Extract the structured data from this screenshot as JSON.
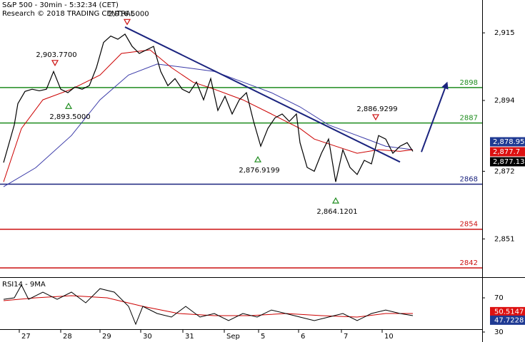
{
  "chart_data": [
    {
      "type": "line",
      "title": "S&P 500 - 30min - 5:32:34 (CET)",
      "subtitle": "Research © 2018 TRADING CENTRAL",
      "xlim": [
        0,
        135
      ],
      "xticks": [
        {
          "value": 5.4,
          "label": "27"
        },
        {
          "value": 17,
          "label": "28"
        },
        {
          "value": 28,
          "label": "29"
        },
        {
          "value": 39.4,
          "label": "30"
        },
        {
          "value": 51.2,
          "label": "31"
        },
        {
          "value": 62.8,
          "label": "Sep"
        },
        {
          "value": 72.4,
          "label": "5"
        },
        {
          "value": 83.6,
          "label": "6"
        },
        {
          "value": 95.6,
          "label": "7"
        },
        {
          "value": 107,
          "label": "10"
        }
      ],
      "ylim": [
        2840,
        2925.2
      ],
      "yticks": [
        {
          "value": 2915,
          "label": "2,915"
        },
        {
          "value": 2894,
          "label": "2,894"
        },
        {
          "value": 2872,
          "label": "2,872"
        },
        {
          "value": 2851,
          "label": "2,851"
        }
      ],
      "series": [
        {
          "color": "#000000",
          "x": [
            1,
            4,
            5,
            7,
            9,
            11,
            13,
            15,
            17,
            19,
            21,
            23,
            25,
            27,
            29,
            31,
            33,
            35,
            37,
            39,
            41,
            43,
            45,
            47,
            49,
            51,
            53,
            55,
            57,
            59,
            61,
            63,
            65,
            67,
            69,
            71,
            73,
            75,
            77,
            79,
            81,
            83,
            84,
            86,
            88,
            90,
            92,
            94,
            96,
            98,
            100,
            102,
            104,
            106,
            108,
            110,
            112,
            114,
            115.6
          ],
          "values": [
            2874.7,
            2886.4,
            2893,
            2896.8,
            2897.5,
            2897,
            2897.5,
            2903,
            2897.5,
            2896.4,
            2898.2,
            2897.5,
            2898.6,
            2904.2,
            2912,
            2914,
            2913,
            2914.6,
            2910.8,
            2908.6,
            2909.7,
            2910.8,
            2903,
            2898.6,
            2900.8,
            2897.5,
            2896.4,
            2899.7,
            2894.2,
            2900.8,
            2890.9,
            2895.3,
            2889.8,
            2894.2,
            2896.4,
            2887.5,
            2879.8,
            2885.3,
            2888.6,
            2889.8,
            2887.5,
            2889.8,
            2880.9,
            2873.2,
            2872,
            2877.6,
            2882,
            2868.7,
            2878.7,
            2873.2,
            2871,
            2875.4,
            2874.3,
            2883.1,
            2882,
            2877.6,
            2879.8,
            2880.9,
            2878.2
          ]
        },
        {
          "color": "#cc0000",
          "x": [
            1,
            6,
            12,
            20,
            28,
            34,
            42,
            48,
            54,
            60,
            68,
            76,
            84,
            88,
            94,
            100,
            106,
            112,
            115.6
          ],
          "values": [
            2868.7,
            2885.3,
            2894.2,
            2897.5,
            2901.9,
            2908.6,
            2909.7,
            2904.2,
            2899.7,
            2897.5,
            2894.2,
            2889.8,
            2885.3,
            2882,
            2879.8,
            2877.6,
            2878.7,
            2878.2,
            2878.7
          ]
        },
        {
          "color": "#3a3aa8",
          "x": [
            1,
            10,
            20,
            28,
            36,
            44,
            52,
            60,
            68,
            76,
            84,
            92,
            100,
            108,
            115.6
          ],
          "values": [
            2867.2,
            2873.1,
            2883.1,
            2894.2,
            2901.9,
            2905.3,
            2904.2,
            2903,
            2899.7,
            2896.4,
            2892,
            2886.4,
            2883.1,
            2879.8,
            2878.7
          ]
        }
      ],
      "levels": [
        {
          "value": 2898,
          "color": "#1e8c1e"
        },
        {
          "value": 2887,
          "color": "#1e8c1e"
        },
        {
          "value": 2868,
          "color": "#1a237e"
        },
        {
          "value": 2854,
          "color": "#cc1111"
        },
        {
          "value": 2842,
          "color": "#cc1111"
        }
      ],
      "trendline": {
        "color": "#1a237e",
        "x": [
          35,
          112
        ],
        "values": [
          2916.8,
          2874.9
        ]
      },
      "arrow": {
        "color": "#1a237e",
        "x": [
          118,
          125
        ],
        "values": [
          2878,
          2899
        ]
      },
      "annotations": [
        {
          "x": 15.4,
          "value": 2903.77,
          "label": "2,903.7700",
          "marker": "down"
        },
        {
          "x": 35.6,
          "value": 2916.5,
          "label": "2,916.5000",
          "marker": "down"
        },
        {
          "x": 19.2,
          "value": 2893.5,
          "label": "2,893.5000",
          "marker": "up"
        },
        {
          "x": 72.2,
          "value": 2876.9199,
          "label": "2,876.9199",
          "marker": "up"
        },
        {
          "x": 94,
          "value": 2864.1201,
          "label": "2,864.1201",
          "marker": "up"
        },
        {
          "x": 105.2,
          "value": 2886.9299,
          "label": "2,886.9299",
          "marker": "down"
        }
      ],
      "price_tags": [
        {
          "value": 2878.95,
          "label": "2,878.95",
          "color": "#1f3a93"
        },
        {
          "value": 2877.7,
          "label": "2,877.7",
          "color": "#dd1111"
        },
        {
          "value": 2877.13,
          "label": "2,877.13",
          "color": "#000000"
        }
      ]
    },
    {
      "type": "line",
      "title": "RSI14 - 9MA",
      "xlim": [
        0,
        135
      ],
      "ylim": [
        30,
        91.7
      ],
      "yticks": [
        70,
        30
      ],
      "series": [
        {
          "color": "#000000",
          "x": [
            1,
            4,
            6,
            8,
            12,
            16,
            20,
            24,
            28,
            32,
            36,
            38,
            40,
            44,
            48,
            52,
            56,
            60,
            64,
            68,
            72,
            76,
            80,
            84,
            88,
            92,
            96,
            100,
            104,
            108,
            112,
            115.6
          ],
          "values": [
            68.3,
            70,
            85,
            68.3,
            76.7,
            68.3,
            76.7,
            64.2,
            80.8,
            76.7,
            60,
            39.2,
            60,
            51.7,
            47.5,
            60,
            47.5,
            51.7,
            43.3,
            51.7,
            47.5,
            55.8,
            51.7,
            47.5,
            43.3,
            47.5,
            51.7,
            43.3,
            51.7,
            55.8,
            51.7,
            49.2
          ]
        },
        {
          "color": "#cc0000",
          "x": [
            1,
            10,
            20,
            30,
            40,
            50,
            60,
            70,
            80,
            90,
            100,
            108,
            115.6
          ],
          "values": [
            66.7,
            70,
            72.5,
            70,
            60,
            51.7,
            49.2,
            49.2,
            51.7,
            49.2,
            47.5,
            51.7,
            51.7
          ]
        }
      ],
      "tags": [
        {
          "value": 50.5147,
          "color": "#dd1111"
        },
        {
          "value": 47.7228,
          "color": "#1f3a93"
        }
      ]
    }
  ]
}
